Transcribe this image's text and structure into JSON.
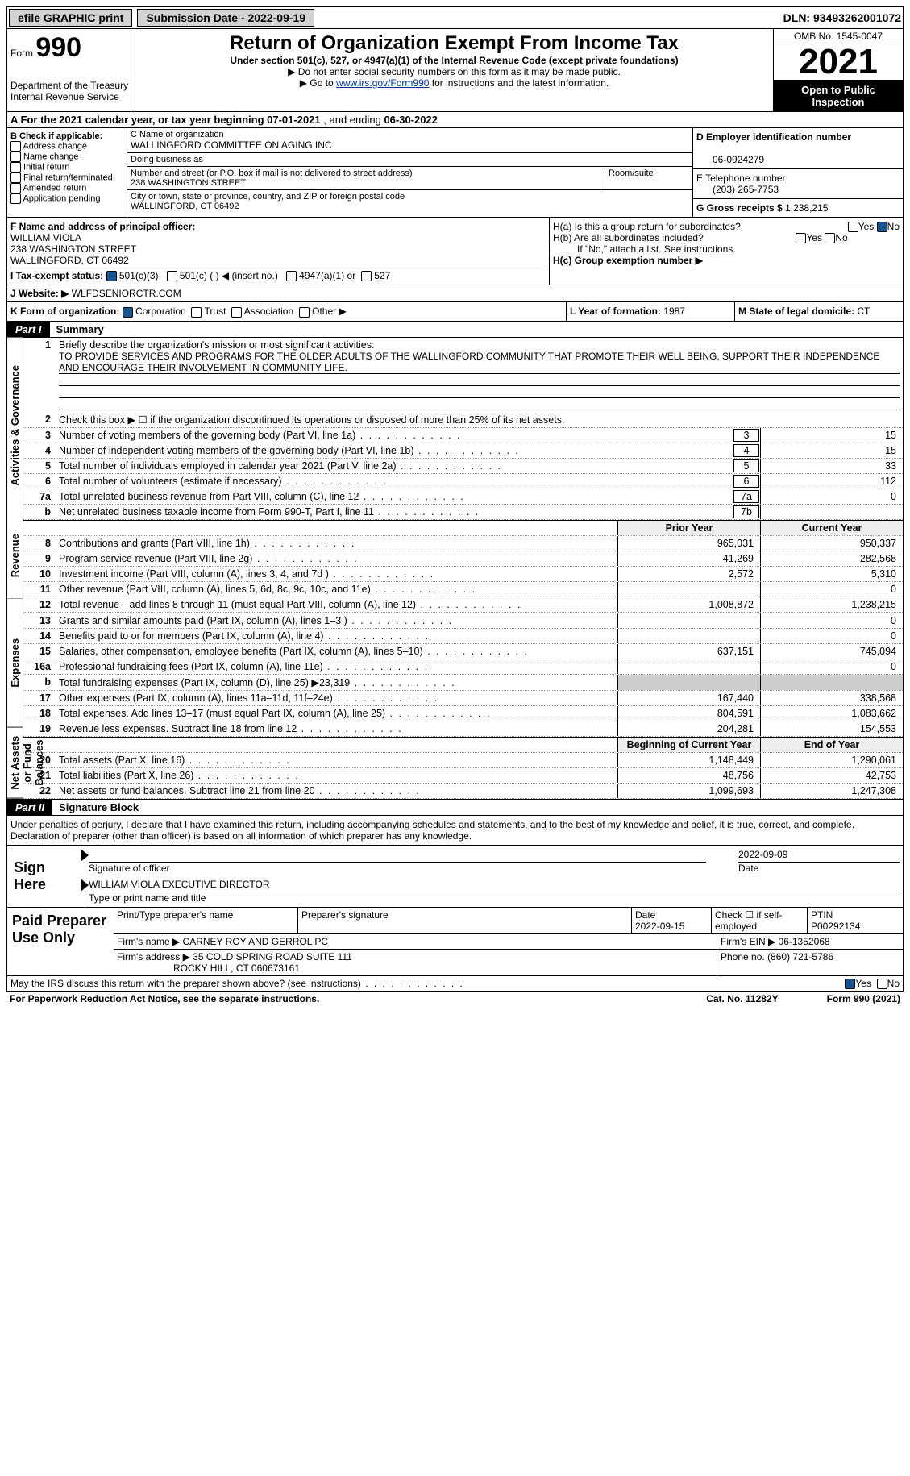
{
  "top": {
    "efile": "efile GRAPHIC print",
    "submission": "Submission Date - 2022-09-19",
    "dln": "DLN: 93493262001072"
  },
  "header": {
    "form_label": "Form",
    "form_no": "990",
    "dept": "Department of the Treasury",
    "irs": "Internal Revenue Service",
    "title": "Return of Organization Exempt From Income Tax",
    "subtitle": "Under section 501(c), 527, or 4947(a)(1) of the Internal Revenue Code (except private foundations)",
    "note1": "▶ Do not enter social security numbers on this form as it may be made public.",
    "note2_pre": "▶ Go to ",
    "note2_link": "www.irs.gov/Form990",
    "note2_post": " for instructions and the latest information.",
    "omb": "OMB No. 1545-0047",
    "year": "2021",
    "inspect": "Open to Public Inspection"
  },
  "rowA": {
    "label": "A For the 2021 calendar year, or tax year beginning ",
    "begin": "07-01-2021",
    "mid": " , and ending ",
    "end": "06-30-2022"
  },
  "colB": {
    "label": "B Check if applicable:",
    "opts": [
      "Address change",
      "Name change",
      "Initial return",
      "Final return/terminated",
      "Amended return",
      "Application pending"
    ]
  },
  "colC": {
    "name_label": "C Name of organization",
    "name": "WALLINGFORD COMMITTEE ON AGING INC",
    "dba_label": "Doing business as",
    "dba": "",
    "addr_label": "Number and street (or P.O. box if mail is not delivered to street address)",
    "room_label": "Room/suite",
    "addr": "238 WASHINGTON STREET",
    "city_label": "City or town, state or province, country, and ZIP or foreign postal code",
    "city": "WALLINGFORD, CT  06492"
  },
  "colDE": {
    "d_label": "D Employer identification number",
    "ein": "06-0924279",
    "e_label": "E Telephone number",
    "phone": "(203) 265-7753",
    "g_label": "G Gross receipts $",
    "gross": "1,238,215"
  },
  "colF": {
    "label": "F Name and address of principal officer:",
    "name": "WILLIAM VIOLA",
    "addr1": "238 WASHINGTON STREET",
    "addr2": "WALLINGFORD, CT  06492"
  },
  "colH": {
    "ha": "H(a)  Is this a group return for subordinates?",
    "hb": "H(b)  Are all subordinates included?",
    "hb_note": "If \"No,\" attach a list. See instructions.",
    "hc": "H(c)  Group exemption number ▶",
    "yes": "Yes",
    "no": "No"
  },
  "rowI": {
    "label": "I   Tax-exempt status:",
    "o1": "501(c)(3)",
    "o2": "501(c) (  ) ◀ (insert no.)",
    "o3": "4947(a)(1) or",
    "o4": "527"
  },
  "rowJ": {
    "label": "J   Website: ▶",
    "val": "WLFDSENIORCTR.COM"
  },
  "rowK": {
    "label": "K Form of organization:",
    "o1": "Corporation",
    "o2": "Trust",
    "o3": "Association",
    "o4": "Other ▶",
    "l_label": "L Year of formation:",
    "l_val": "1987",
    "m_label": "M State of legal domicile:",
    "m_val": "CT"
  },
  "part1": {
    "label": "Part I",
    "title": "Summary"
  },
  "mission": {
    "q": "Briefly describe the organization's mission or most significant activities:",
    "text": "TO PROVIDE SERVICES AND PROGRAMS FOR THE OLDER ADULTS OF THE WALLINGFORD COMMUNITY THAT PROMOTE THEIR WELL BEING, SUPPORT THEIR INDEPENDENCE AND ENCOURAGE THEIR INVOLVEMENT IN COMMUNITY LIFE."
  },
  "line2": "Check this box ▶ ☐ if the organization discontinued its operations or disposed of more than 25% of its net assets.",
  "lines_single": [
    {
      "n": "3",
      "d": "Number of voting members of the governing body (Part VI, line 1a)",
      "box": "3",
      "v": "15"
    },
    {
      "n": "4",
      "d": "Number of independent voting members of the governing body (Part VI, line 1b)",
      "box": "4",
      "v": "15"
    },
    {
      "n": "5",
      "d": "Total number of individuals employed in calendar year 2021 (Part V, line 2a)",
      "box": "5",
      "v": "33"
    },
    {
      "n": "6",
      "d": "Total number of volunteers (estimate if necessary)",
      "box": "6",
      "v": "112"
    },
    {
      "n": "7a",
      "d": "Total unrelated business revenue from Part VIII, column (C), line 12",
      "box": "7a",
      "v": "0"
    },
    {
      "n": "b",
      "d": "Net unrelated business taxable income from Form 990-T, Part I, line 11",
      "box": "7b",
      "v": ""
    }
  ],
  "col_hdr": {
    "prior": "Prior Year",
    "current": "Current Year"
  },
  "revenue": [
    {
      "n": "8",
      "d": "Contributions and grants (Part VIII, line 1h)",
      "p": "965,031",
      "c": "950,337"
    },
    {
      "n": "9",
      "d": "Program service revenue (Part VIII, line 2g)",
      "p": "41,269",
      "c": "282,568"
    },
    {
      "n": "10",
      "d": "Investment income (Part VIII, column (A), lines 3, 4, and 7d )",
      "p": "2,572",
      "c": "5,310"
    },
    {
      "n": "11",
      "d": "Other revenue (Part VIII, column (A), lines 5, 6d, 8c, 9c, 10c, and 11e)",
      "p": "",
      "c": "0"
    },
    {
      "n": "12",
      "d": "Total revenue—add lines 8 through 11 (must equal Part VIII, column (A), line 12)",
      "p": "1,008,872",
      "c": "1,238,215"
    }
  ],
  "expenses": [
    {
      "n": "13",
      "d": "Grants and similar amounts paid (Part IX, column (A), lines 1–3 )",
      "p": "",
      "c": "0"
    },
    {
      "n": "14",
      "d": "Benefits paid to or for members (Part IX, column (A), line 4)",
      "p": "",
      "c": "0"
    },
    {
      "n": "15",
      "d": "Salaries, other compensation, employee benefits (Part IX, column (A), lines 5–10)",
      "p": "637,151",
      "c": "745,094"
    },
    {
      "n": "16a",
      "d": "Professional fundraising fees (Part IX, column (A), line 11e)",
      "p": "",
      "c": "0"
    },
    {
      "n": "b",
      "d": "Total fundraising expenses (Part IX, column (D), line 25) ▶23,319",
      "p": "shade",
      "c": "shade"
    },
    {
      "n": "17",
      "d": "Other expenses (Part IX, column (A), lines 11a–11d, 11f–24e)",
      "p": "167,440",
      "c": "338,568"
    },
    {
      "n": "18",
      "d": "Total expenses. Add lines 13–17 (must equal Part IX, column (A), line 25)",
      "p": "804,591",
      "c": "1,083,662"
    },
    {
      "n": "19",
      "d": "Revenue less expenses. Subtract line 18 from line 12",
      "p": "204,281",
      "c": "154,553"
    }
  ],
  "netassets_hdr": {
    "begin": "Beginning of Current Year",
    "end": "End of Year"
  },
  "netassets": [
    {
      "n": "20",
      "d": "Total assets (Part X, line 16)",
      "p": "1,148,449",
      "c": "1,290,061"
    },
    {
      "n": "21",
      "d": "Total liabilities (Part X, line 26)",
      "p": "48,756",
      "c": "42,753"
    },
    {
      "n": "22",
      "d": "Net assets or fund balances. Subtract line 21 from line 20",
      "p": "1,099,693",
      "c": "1,247,308"
    }
  ],
  "vert": {
    "act": "Activities & Governance",
    "rev": "Revenue",
    "exp": "Expenses",
    "net": "Net Assets or Fund Balances"
  },
  "part2": {
    "label": "Part II",
    "title": "Signature Block"
  },
  "penalty": "Under penalties of perjury, I declare that I have examined this return, including accompanying schedules and statements, and to the best of my knowledge and belief, it is true, correct, and complete. Declaration of preparer (other than officer) is based on all information of which preparer has any knowledge.",
  "sign": {
    "here": "Sign Here",
    "date": "2022-09-09",
    "sig_label": "Signature of officer",
    "date_label": "Date",
    "name": "WILLIAM VIOLA  EXECUTIVE DIRECTOR",
    "name_label": "Type or print name and title"
  },
  "paid": {
    "label": "Paid Preparer Use Only",
    "h_name": "Print/Type preparer's name",
    "h_sig": "Preparer's signature",
    "h_date": "Date",
    "h_check": "Check ☐ if self-employed",
    "h_ptin": "PTIN",
    "date": "2022-09-15",
    "ptin": "P00292134",
    "firm_label": "Firm's name    ▶",
    "firm": "CARNEY ROY AND GERROL PC",
    "ein_label": "Firm's EIN ▶",
    "ein": "06-1352068",
    "addr_label": "Firm's address ▶",
    "addr1": "35 COLD SPRING ROAD SUITE 111",
    "addr2": "ROCKY HILL, CT  060673161",
    "phone_label": "Phone no.",
    "phone": "(860) 721-5786"
  },
  "footer": {
    "q": "May the IRS discuss this return with the preparer shown above? (see instructions)",
    "yes": "Yes",
    "no": "No",
    "pra": "For Paperwork Reduction Act Notice, see the separate instructions.",
    "cat": "Cat. No. 11282Y",
    "form": "Form 990 (2021)"
  }
}
